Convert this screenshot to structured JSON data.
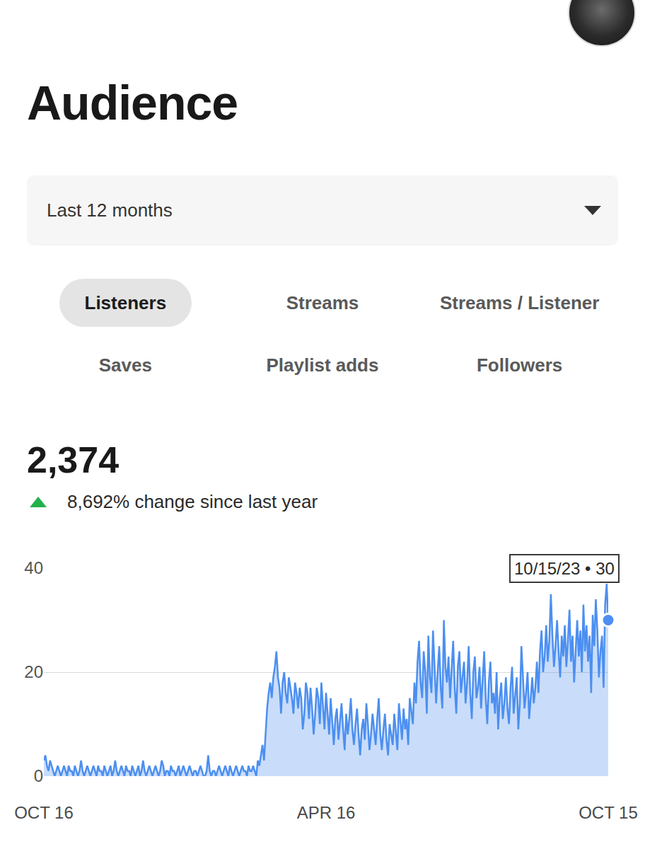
{
  "header": {
    "title": "Audience"
  },
  "period_selector": "Last 12 months",
  "tabs": [
    "Listeners",
    "Streams",
    "Streams / Listener",
    "Saves",
    "Playlist adds",
    "Followers"
  ],
  "selected_tab": "Listeners",
  "summary": {
    "value": "2,374",
    "direction": "up",
    "change": "8,692% change since last year"
  },
  "chart_data": {
    "type": "area",
    "color": "#4c8ff0",
    "grid": true,
    "ylim": [
      0,
      40
    ],
    "yticks": [
      0,
      20,
      40
    ],
    "annotations": [
      {
        "text": "10/15/23 • 30",
        "x": "OCT 15",
        "y": 30
      }
    ],
    "categories": [
      "OCT 16",
      null,
      null,
      null,
      null,
      null,
      null,
      null,
      null,
      null,
      null,
      null,
      null,
      null,
      null,
      null,
      null,
      null,
      null,
      null,
      null,
      null,
      null,
      null,
      null,
      null,
      null,
      null,
      null,
      null,
      null,
      null,
      null,
      null,
      null,
      null,
      null,
      null,
      null,
      null,
      null,
      null,
      null,
      null,
      null,
      null,
      null,
      null,
      null,
      null,
      null,
      null,
      null,
      null,
      null,
      null,
      null,
      null,
      null,
      null,
      null,
      null,
      null,
      null,
      null,
      null,
      null,
      null,
      null,
      null,
      null,
      null,
      null,
      null,
      null,
      null,
      null,
      null,
      null,
      null,
      null,
      null,
      null,
      null,
      null,
      null,
      null,
      null,
      null,
      null,
      null,
      null,
      null,
      null,
      null,
      null,
      null,
      null,
      null,
      null,
      null,
      null,
      null,
      null,
      null,
      null,
      null,
      null,
      null,
      null,
      null,
      null,
      null,
      null,
      null,
      null,
      null,
      null,
      null,
      null,
      null,
      null,
      null,
      null,
      null,
      null,
      null,
      null,
      null,
      null,
      null,
      null,
      null,
      null,
      null,
      null,
      null,
      null,
      null,
      null,
      null,
      null,
      null,
      null,
      null,
      null,
      null,
      null,
      null,
      null,
      null,
      null,
      null,
      null,
      null,
      null,
      null,
      null,
      null,
      null,
      null,
      null,
      null,
      null,
      null,
      null,
      null,
      null,
      null,
      null,
      null,
      null,
      null,
      null,
      null,
      null,
      null,
      null,
      null,
      null,
      null,
      null,
      "APR 16",
      null,
      null,
      null,
      null,
      null,
      null,
      null,
      null,
      null,
      null,
      null,
      null,
      null,
      null,
      null,
      null,
      null,
      null,
      null,
      null,
      null,
      null,
      null,
      null,
      null,
      null,
      null,
      null,
      null,
      null,
      null,
      null,
      null,
      null,
      null,
      null,
      null,
      null,
      null,
      null,
      null,
      null,
      null,
      null,
      null,
      null,
      null,
      null,
      null,
      null,
      null,
      null,
      null,
      null,
      null,
      null,
      null,
      null,
      null,
      null,
      null,
      null,
      null,
      null,
      null,
      null,
      null,
      null,
      null,
      null,
      null,
      null,
      null,
      null,
      null,
      null,
      null,
      null,
      null,
      null,
      null,
      null,
      null,
      null,
      null,
      null,
      null,
      null,
      null,
      null,
      null,
      null,
      null,
      null,
      null,
      null,
      null,
      null,
      null,
      null,
      null,
      null,
      null,
      null,
      null,
      null,
      null,
      null,
      null,
      null,
      null,
      null,
      null,
      null,
      null,
      null,
      null,
      null,
      null,
      null,
      null,
      null,
      null,
      null,
      null,
      null,
      null,
      null,
      null,
      null,
      null,
      null,
      null,
      null,
      null,
      null,
      null,
      null,
      null,
      null,
      null,
      null,
      null,
      null,
      null,
      null,
      null,
      null,
      null,
      null,
      null,
      null,
      null,
      null,
      null,
      null,
      null,
      null,
      null,
      null,
      null,
      null,
      null,
      null,
      null,
      null,
      null,
      null,
      null,
      null,
      null,
      null,
      null,
      null,
      null,
      null,
      null,
      null,
      null,
      null,
      null,
      "OCT 15"
    ],
    "values": [
      3,
      4,
      2,
      1,
      3,
      2,
      1,
      0,
      1,
      2,
      1,
      0,
      1,
      2,
      1,
      0,
      2,
      1,
      1,
      0,
      2,
      1,
      0,
      1,
      3,
      1,
      0,
      1,
      2,
      1,
      0,
      1,
      2,
      1,
      0,
      2,
      1,
      1,
      0,
      2,
      1,
      0,
      1,
      2,
      0,
      1,
      3,
      1,
      0,
      1,
      2,
      1,
      0,
      2,
      1,
      1,
      0,
      2,
      1,
      0,
      1,
      2,
      0,
      1,
      3,
      1,
      0,
      1,
      2,
      1,
      0,
      1,
      2,
      1,
      0,
      1,
      3,
      2,
      0,
      1,
      1,
      0,
      2,
      1,
      1,
      0,
      1,
      2,
      0,
      1,
      2,
      1,
      0,
      1,
      2,
      1,
      0,
      1,
      1,
      0,
      1,
      2,
      1,
      0,
      0,
      1,
      4,
      1,
      0,
      1,
      1,
      0,
      1,
      2,
      1,
      0,
      1,
      2,
      1,
      0,
      2,
      1,
      0,
      1,
      2,
      1,
      0,
      1,
      2,
      1,
      1,
      0,
      2,
      1,
      1,
      2,
      1,
      0,
      3,
      2,
      4,
      6,
      3,
      9,
      13,
      16,
      18,
      15,
      19,
      21,
      24,
      19,
      17,
      12,
      18,
      20,
      16,
      14,
      19,
      17,
      15,
      12,
      18,
      16,
      13,
      17,
      15,
      9,
      12,
      18,
      16,
      11,
      17,
      13,
      8,
      12,
      17,
      15,
      10,
      18,
      14,
      9,
      16,
      12,
      8,
      15,
      10,
      6,
      11,
      13,
      7,
      10,
      14,
      9,
      5,
      12,
      8,
      11,
      15,
      9,
      6,
      10,
      13,
      8,
      4,
      9,
      11,
      7,
      14,
      10,
      5,
      8,
      12,
      9,
      6,
      11,
      15,
      8,
      5,
      9,
      12,
      7,
      4,
      10,
      8,
      6,
      12,
      9,
      5,
      14,
      10,
      7,
      13,
      9,
      11,
      6,
      15,
      12,
      10,
      18,
      14,
      22,
      26,
      18,
      15,
      24,
      20,
      12,
      27,
      19,
      16,
      28,
      22,
      14,
      20,
      25,
      17,
      13,
      30,
      21,
      18,
      23,
      15,
      20,
      26,
      17,
      12,
      21,
      24,
      16,
      19,
      22,
      14,
      18,
      25,
      16,
      11,
      20,
      23,
      15,
      17,
      21,
      13,
      19,
      24,
      15,
      10,
      18,
      22,
      14,
      16,
      12,
      20,
      9,
      15,
      18,
      11,
      14,
      19,
      13,
      10,
      17,
      21,
      12,
      15,
      19,
      9,
      14,
      25,
      18,
      13,
      16,
      20,
      11,
      15,
      19,
      14,
      17,
      22,
      16,
      24,
      28,
      20,
      23,
      29,
      22,
      26,
      35,
      27,
      21,
      25,
      30,
      24,
      19,
      27,
      23,
      29,
      21,
      26,
      32,
      22,
      27,
      18,
      25,
      30,
      23,
      28,
      20,
      33,
      24,
      29,
      22,
      27,
      16,
      31,
      25,
      34,
      28,
      19,
      24,
      27,
      17,
      33,
      37,
      30
    ]
  }
}
